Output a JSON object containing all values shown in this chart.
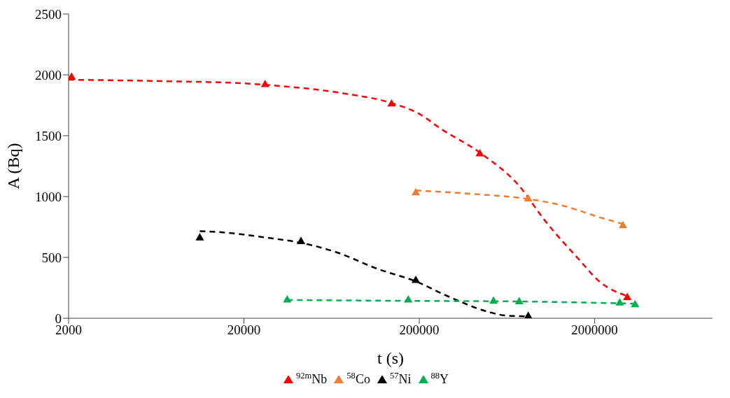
{
  "chart_data": {
    "type": "scatter",
    "xlabel": "t (s)",
    "ylabel": "A (Bq)",
    "log": "x",
    "xlim": [
      2000,
      9400000
    ],
    "xticks": [
      2000,
      20000,
      200000,
      2000000
    ],
    "ylim": [
      0,
      2500
    ],
    "yticks": [
      0,
      500,
      1000,
      1500,
      2000,
      2500
    ],
    "grid": false,
    "legend": "bottom",
    "marker": "triangle",
    "series": [
      {
        "name": "$^{92m}$Nb",
        "color": "#ff0000",
        "x": [
          2080,
          26400,
          139000,
          443000,
          3070000
        ],
        "values": [
          1980,
          1920,
          1760,
          1350,
          170
        ]
      },
      {
        "name": "$^{58}$Co",
        "color": "#ed7d31",
        "x": [
          191000,
          836000,
          2900000
        ],
        "values": [
          1030,
          980,
          760
        ]
      },
      {
        "name": "$^{57}$Ni",
        "color": "#000000",
        "x": [
          11200,
          42300,
          191000,
          836000
        ],
        "values": [
          660,
          630,
          310,
          15
        ]
      },
      {
        "name": "$^{88}$Y",
        "color": "#00b050",
        "x": [
          35300,
          173000,
          530000,
          743000,
          2780000,
          3400000
        ],
        "values": [
          150,
          150,
          140,
          135,
          125,
          110
        ]
      },
      {
        "type": "line",
        "marker": "none",
        "line_style": "dashed",
        "color": "#ff0000",
        "x": [
          2000,
          6930,
          20000,
          26400,
          73800,
          139000,
          200000,
          264000,
          443000,
          750000,
          1030000,
          1630000,
          2130000,
          3070000
        ],
        "values": [
          1960,
          1948,
          1930,
          1918,
          1848,
          1768,
          1679,
          1559,
          1361,
          1080,
          811,
          482,
          302,
          182
        ]
      },
      {
        "type": "line",
        "marker": "none",
        "line_style": "dashed",
        "color": "#ed7d31",
        "x": [
          191000,
          416000,
          836000,
          1360000,
          2130000,
          2900000
        ],
        "values": [
          1050,
          1020,
          980,
          920,
          830,
          775
        ]
      },
      {
        "type": "line",
        "marker": "none",
        "line_style": "dashed",
        "color": "#000000",
        "x": [
          11200,
          15700,
          27000,
          42300,
          67200,
          116000,
          191000,
          288000,
          497000,
          623000,
          820000
        ],
        "values": [
          716,
          704,
          662,
          620,
          543,
          405,
          303,
          184,
          52,
          22,
          16
        ]
      },
      {
        "type": "line",
        "marker": "none",
        "line_style": "dashed",
        "color": "#00b050",
        "x": [
          35300,
          173000,
          743000,
          3400000
        ],
        "values": [
          150,
          143,
          138,
          120
        ]
      }
    ]
  }
}
